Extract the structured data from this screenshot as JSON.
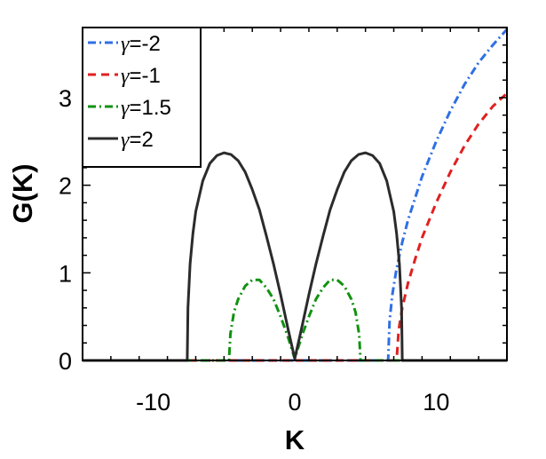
{
  "chart_data": {
    "type": "line",
    "xlabel": "K",
    "ylabel": "G(K)",
    "xlim": [
      -15,
      15
    ],
    "ylim": [
      0,
      3.8
    ],
    "xticks": [
      -10,
      0,
      10
    ],
    "yticks": [
      0,
      1,
      2,
      3
    ],
    "xtick_labels": [
      "-10",
      "0",
      "10"
    ],
    "ytick_labels": [
      "0",
      "1",
      "2",
      "3"
    ],
    "grid": false,
    "legend_position": "top-left",
    "series": [
      {
        "name": "γ=-2",
        "color": "#2f6fe4",
        "style": "dashdot",
        "x": [
          -15,
          6.6,
          6.7,
          6.9,
          7.2,
          7.6,
          8,
          9,
          10,
          11,
          12,
          13,
          14,
          15
        ],
        "y": [
          0,
          0,
          0.45,
          0.75,
          1.05,
          1.35,
          1.6,
          2.1,
          2.5,
          2.85,
          3.15,
          3.4,
          3.6,
          3.78
        ]
      },
      {
        "name": "γ=-1",
        "color": "#e02020",
        "style": "dashed",
        "x": [
          -15,
          7.2,
          7.35,
          7.6,
          8,
          8.5,
          9,
          10,
          11,
          12,
          13,
          14,
          15
        ],
        "y": [
          0,
          0,
          0.35,
          0.6,
          0.88,
          1.15,
          1.4,
          1.8,
          2.15,
          2.45,
          2.7,
          2.9,
          3.05
        ]
      },
      {
        "name": "γ=1.5",
        "color": "#119211",
        "style": "dashdot",
        "x": [
          -15,
          -4.65,
          -4.55,
          -4.3,
          -4,
          -3.5,
          -3,
          -2.5,
          -2,
          -1.5,
          -1,
          -0.5,
          0,
          0.5,
          1,
          1.5,
          2,
          2.5,
          3,
          3.5,
          4,
          4.3,
          4.55,
          4.65,
          15
        ],
        "y": [
          0,
          0,
          0.3,
          0.55,
          0.7,
          0.85,
          0.92,
          0.92,
          0.83,
          0.7,
          0.5,
          0.28,
          0.02,
          0.28,
          0.5,
          0.7,
          0.83,
          0.92,
          0.92,
          0.85,
          0.7,
          0.55,
          0.3,
          0,
          0
        ]
      },
      {
        "name": "γ=2",
        "color": "#2b2b2b",
        "style": "solid",
        "x": [
          -15,
          -7.6,
          -7.55,
          -7.4,
          -7.2,
          -7,
          -6.5,
          -6,
          -5.5,
          -5,
          -4.5,
          -4,
          -3.5,
          -3,
          -2.5,
          -2,
          -1.5,
          -1,
          -0.5,
          0,
          0.5,
          1,
          1.5,
          2,
          2.5,
          3,
          3.5,
          4,
          4.5,
          5,
          5.5,
          6,
          6.5,
          7,
          7.2,
          7.4,
          7.55,
          7.6,
          15
        ],
        "y": [
          0,
          0,
          0.6,
          1.1,
          1.45,
          1.7,
          2.05,
          2.25,
          2.34,
          2.37,
          2.35,
          2.28,
          2.15,
          1.95,
          1.72,
          1.42,
          1.1,
          0.75,
          0.38,
          0.02,
          0.38,
          0.75,
          1.1,
          1.42,
          1.72,
          1.95,
          2.15,
          2.28,
          2.35,
          2.37,
          2.34,
          2.25,
          2.05,
          1.7,
          1.45,
          1.1,
          0.6,
          0,
          0
        ]
      }
    ]
  }
}
